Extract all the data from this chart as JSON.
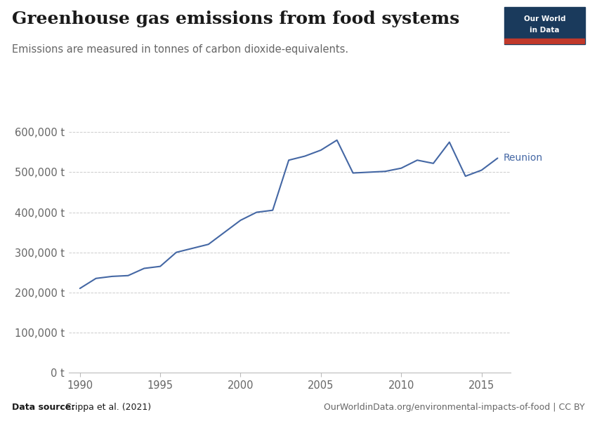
{
  "title": "Greenhouse gas emissions from food systems",
  "subtitle": "Emissions are measured in tonnes of carbon dioxide-equivalents.",
  "series_label": "Reunion",
  "line_color": "#4467a4",
  "years": [
    1990,
    1991,
    1992,
    1993,
    1994,
    1995,
    1996,
    1997,
    1998,
    1999,
    2000,
    2001,
    2002,
    2003,
    2004,
    2005,
    2006,
    2007,
    2008,
    2009,
    2010,
    2011,
    2012,
    2013,
    2014,
    2015,
    2016
  ],
  "values": [
    210000,
    235000,
    240000,
    242000,
    260000,
    265000,
    300000,
    310000,
    320000,
    350000,
    380000,
    400000,
    405000,
    530000,
    540000,
    555000,
    580000,
    498000,
    500000,
    502000,
    510000,
    530000,
    522000,
    575000,
    490000,
    505000,
    535000
  ],
  "ylim_max": 625000,
  "ytick_vals": [
    0,
    100000,
    200000,
    300000,
    400000,
    500000,
    600000
  ],
  "ytick_labels": [
    "0 t",
    "100,000 t",
    "200,000 t",
    "300,000 t",
    "400,000 t",
    "500,000 t",
    "600,000 t"
  ],
  "xticks": [
    1990,
    1995,
    2000,
    2005,
    2010,
    2015
  ],
  "xlim_min": 1989.3,
  "xlim_max": 2016.8,
  "data_source_bold": "Data source:",
  "data_source_rest": " Crippa et al. (2021)",
  "url_text": "OurWorldinData.org/environmental-impacts-of-food | CC BY",
  "bg_color": "#ffffff",
  "grid_color": "#cccccc",
  "spine_color": "#bbbbbb",
  "text_dark": "#1a1a1a",
  "text_mid": "#666666",
  "owid_bg": "#1a3a5c",
  "owid_red": "#c0392b",
  "title_fs": 18,
  "subtitle_fs": 10.5,
  "tick_fs": 10.5,
  "annot_fs": 10,
  "footer_fs": 9
}
